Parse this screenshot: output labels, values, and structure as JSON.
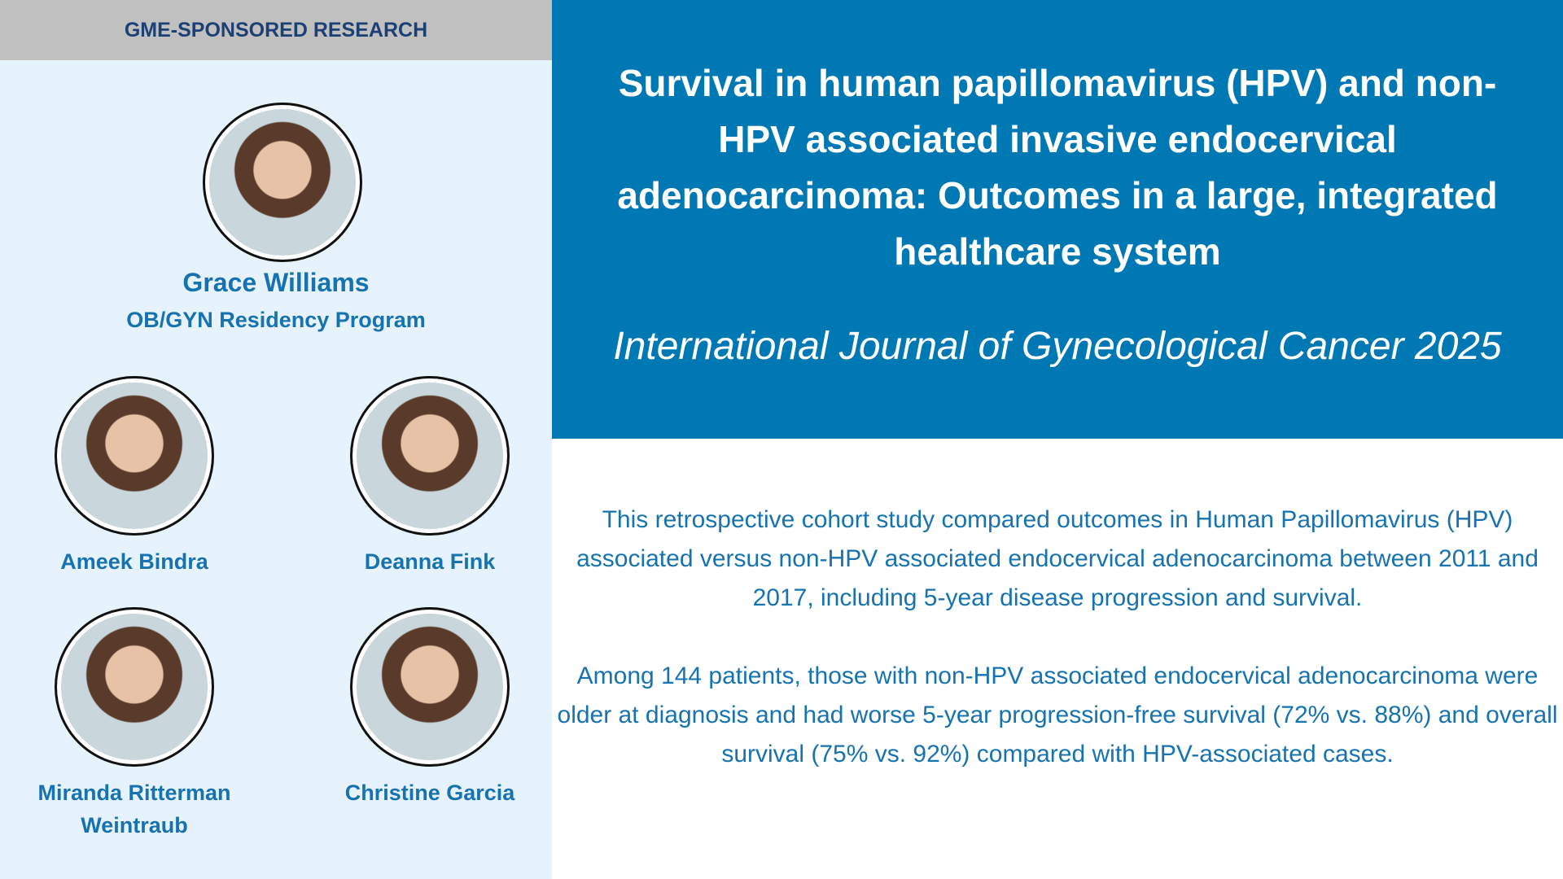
{
  "header": {
    "label": "GME-SPONSORED RESEARCH"
  },
  "featured": {
    "name": "Grace Williams",
    "program": "OB/GYN Residency Program"
  },
  "authors": [
    {
      "name": "Ameek Bindra"
    },
    {
      "name": "Deanna Fink"
    },
    {
      "name": "Miranda Ritterman Weintraub"
    },
    {
      "name": "Christine Garcia"
    }
  ],
  "article": {
    "title": "Survival in human papillomavirus (HPV) and non-HPV associated invasive endocervical adenocarcinoma: Outcomes in a large, integrated healthcare system",
    "journal": "International Journal of Gynecological Cancer 2025"
  },
  "summary": [
    "This retrospective cohort study compared outcomes in Human Papillomavirus (HPV) associated versus non-HPV associated endocervical adenocarcinoma between 2011 and 2017, including 5-year disease progression and survival.",
    "Among 144 patients, those with non-HPV associated endocervical adenocarcinoma were older at diagnosis and had worse 5-year progression-free survival (72% vs. 88%) and overall survival (75% vs. 92%) compared with HPV-associated cases."
  ]
}
